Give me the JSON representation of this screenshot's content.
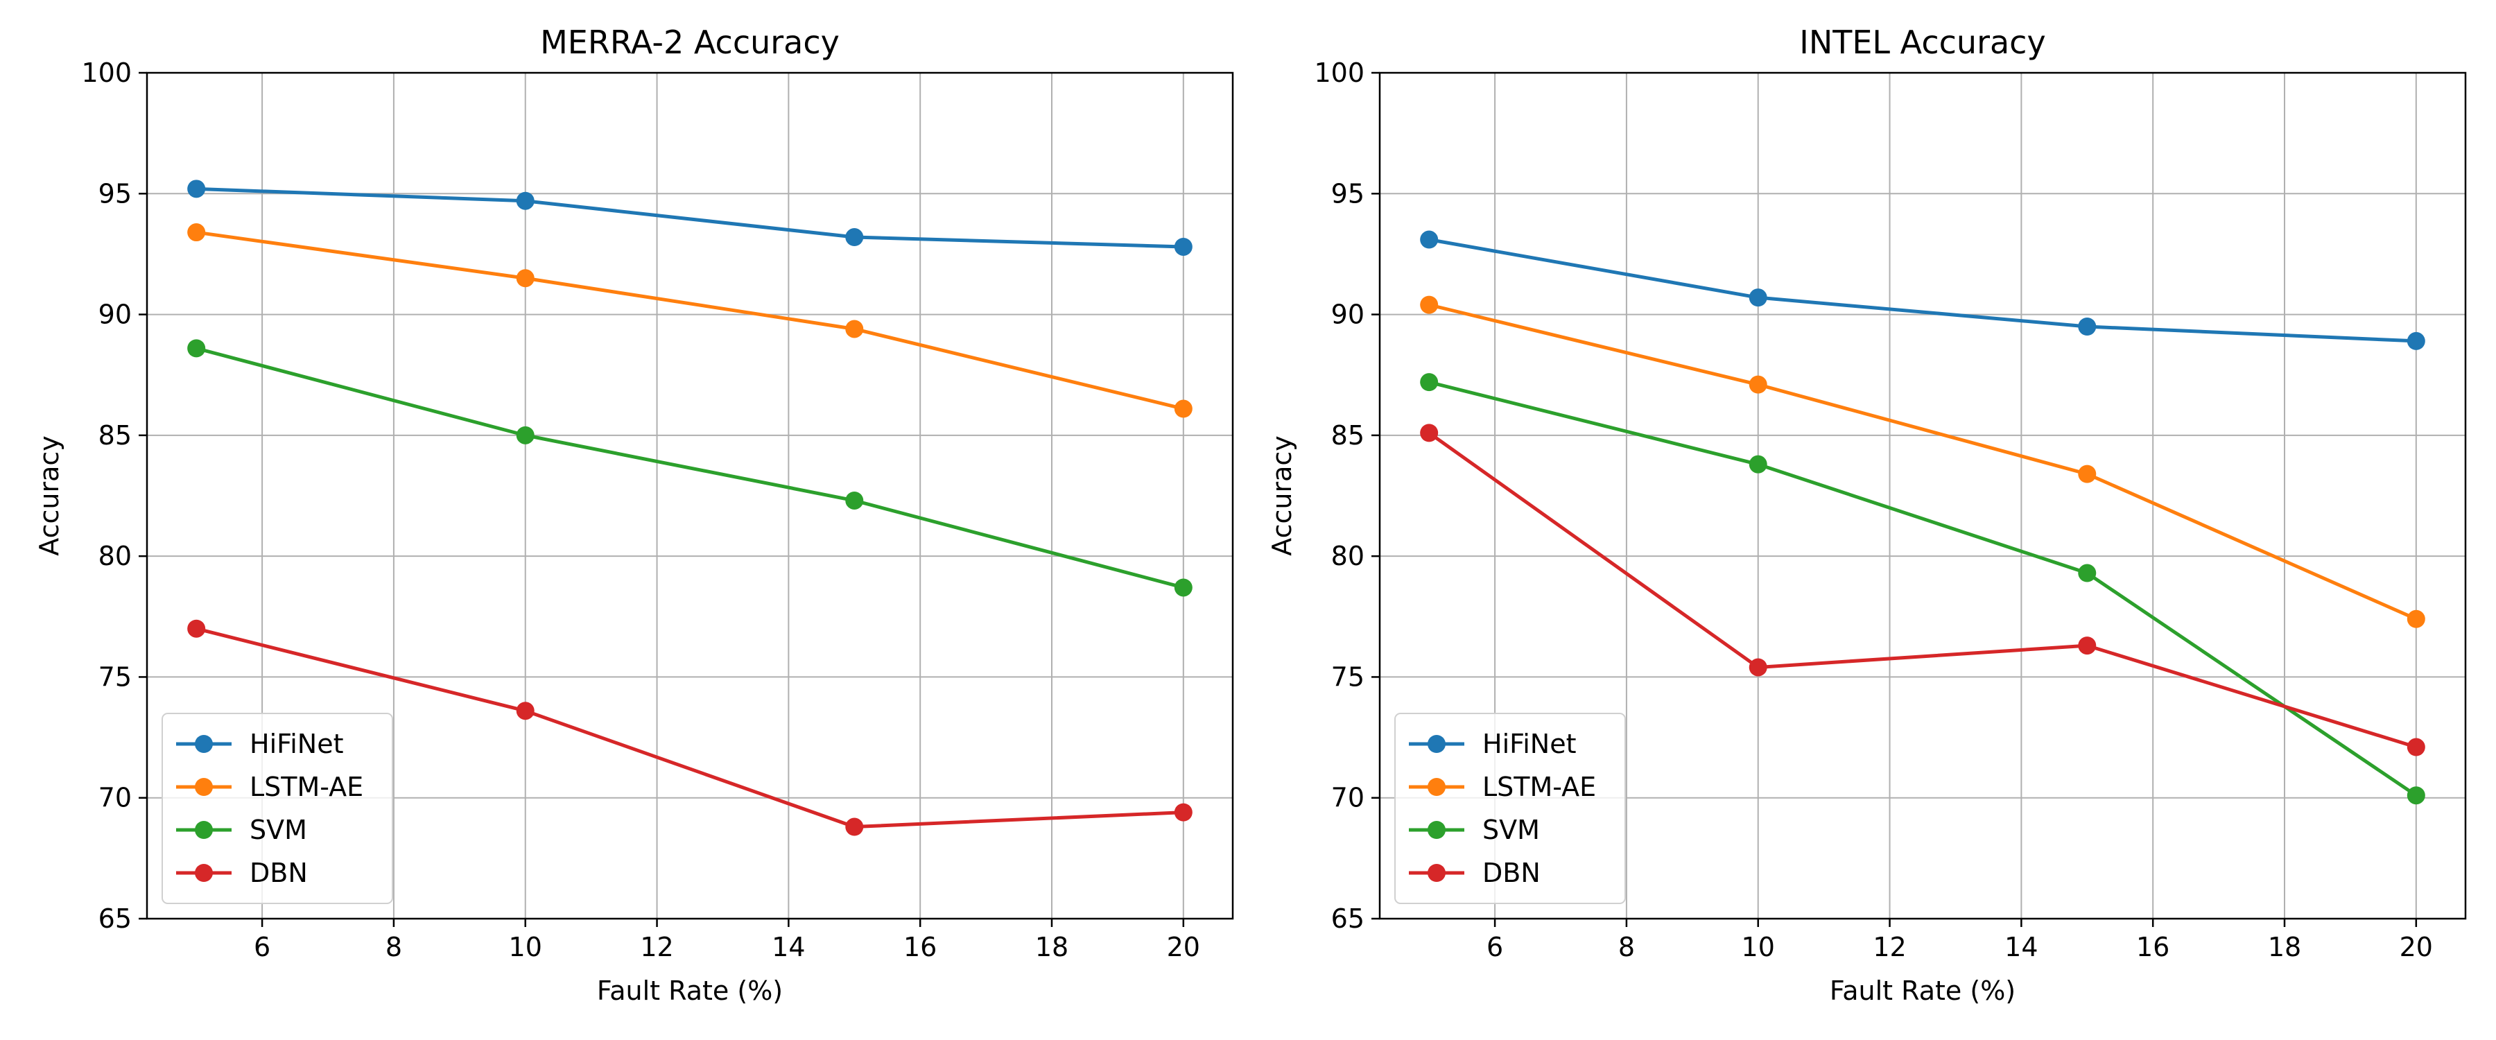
{
  "chart_data": [
    {
      "type": "line",
      "title": "MERRA-2 Accuracy",
      "xlabel": "Fault Rate (%)",
      "ylabel": "Accuracy",
      "x": [
        5,
        10,
        15,
        20
      ],
      "xlim": [
        4.25,
        20.75
      ],
      "ylim": [
        65,
        100
      ],
      "xticks": [
        6,
        8,
        10,
        12,
        14,
        16,
        18,
        20
      ],
      "yticks": [
        65,
        70,
        75,
        80,
        85,
        90,
        95,
        100
      ],
      "grid": true,
      "legend_position": "lower-left",
      "series": [
        {
          "name": "HiFiNet",
          "color": "#1f77b4",
          "values": [
            95.2,
            94.7,
            93.2,
            92.8
          ]
        },
        {
          "name": "LSTM-AE",
          "color": "#ff7f0e",
          "values": [
            93.4,
            91.5,
            89.4,
            86.1
          ]
        },
        {
          "name": "SVM",
          "color": "#2ca02c",
          "values": [
            88.6,
            85.0,
            82.3,
            78.7
          ]
        },
        {
          "name": "DBN",
          "color": "#d62728",
          "values": [
            77.0,
            73.6,
            68.8,
            69.4
          ]
        }
      ]
    },
    {
      "type": "line",
      "title": "INTEL Accuracy",
      "xlabel": "Fault Rate (%)",
      "ylabel": "Accuracy",
      "x": [
        5,
        10,
        15,
        20
      ],
      "xlim": [
        4.25,
        20.75
      ],
      "ylim": [
        65,
        100
      ],
      "xticks": [
        6,
        8,
        10,
        12,
        14,
        16,
        18,
        20
      ],
      "yticks": [
        65,
        70,
        75,
        80,
        85,
        90,
        95,
        100
      ],
      "grid": true,
      "legend_position": "lower-left",
      "series": [
        {
          "name": "HiFiNet",
          "color": "#1f77b4",
          "values": [
            93.1,
            90.7,
            89.5,
            88.9
          ]
        },
        {
          "name": "LSTM-AE",
          "color": "#ff7f0e",
          "values": [
            90.4,
            87.1,
            83.4,
            77.4
          ]
        },
        {
          "name": "SVM",
          "color": "#2ca02c",
          "values": [
            87.2,
            83.8,
            79.3,
            70.1
          ]
        },
        {
          "name": "DBN",
          "color": "#d62728",
          "values": [
            85.1,
            75.4,
            76.3,
            72.1
          ]
        }
      ]
    }
  ]
}
